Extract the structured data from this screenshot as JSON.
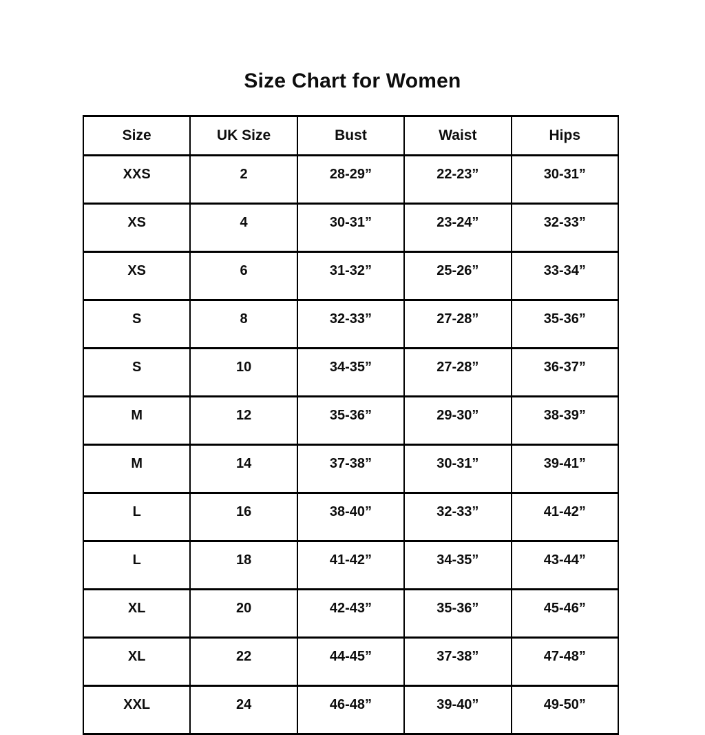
{
  "title": "Size Chart for Women",
  "colors": {
    "background": "#ffffff",
    "border": "#000000",
    "text": "#0d0d0d"
  },
  "chart_data": {
    "type": "table",
    "title": "Size Chart for Women",
    "columns": [
      "Size",
      "UK Size",
      "Bust",
      "Waist",
      "Hips"
    ],
    "rows": [
      [
        "XXS",
        "2",
        "28-29”",
        "22-23”",
        "30-31”"
      ],
      [
        "XS",
        "4",
        "30-31”",
        "23-24”",
        "32-33”"
      ],
      [
        "XS",
        "6",
        "31-32”",
        "25-26”",
        "33-34”"
      ],
      [
        "S",
        "8",
        "32-33”",
        "27-28”",
        "35-36”"
      ],
      [
        "S",
        "10",
        "34-35”",
        "27-28”",
        "36-37”"
      ],
      [
        "M",
        "12",
        "35-36”",
        "29-30”",
        "38-39”"
      ],
      [
        "M",
        "14",
        "37-38”",
        "30-31”",
        "39-41”"
      ],
      [
        "L",
        "16",
        "38-40”",
        "32-33”",
        "41-42”"
      ],
      [
        "L",
        "18",
        "41-42”",
        "34-35”",
        "43-44”"
      ],
      [
        "XL",
        "20",
        "42-43”",
        "35-36”",
        "45-46”"
      ],
      [
        "XL",
        "22",
        "44-45”",
        "37-38”",
        "47-48”"
      ],
      [
        "XXL",
        "24",
        "46-48”",
        "39-40”",
        "49-50”"
      ]
    ]
  }
}
